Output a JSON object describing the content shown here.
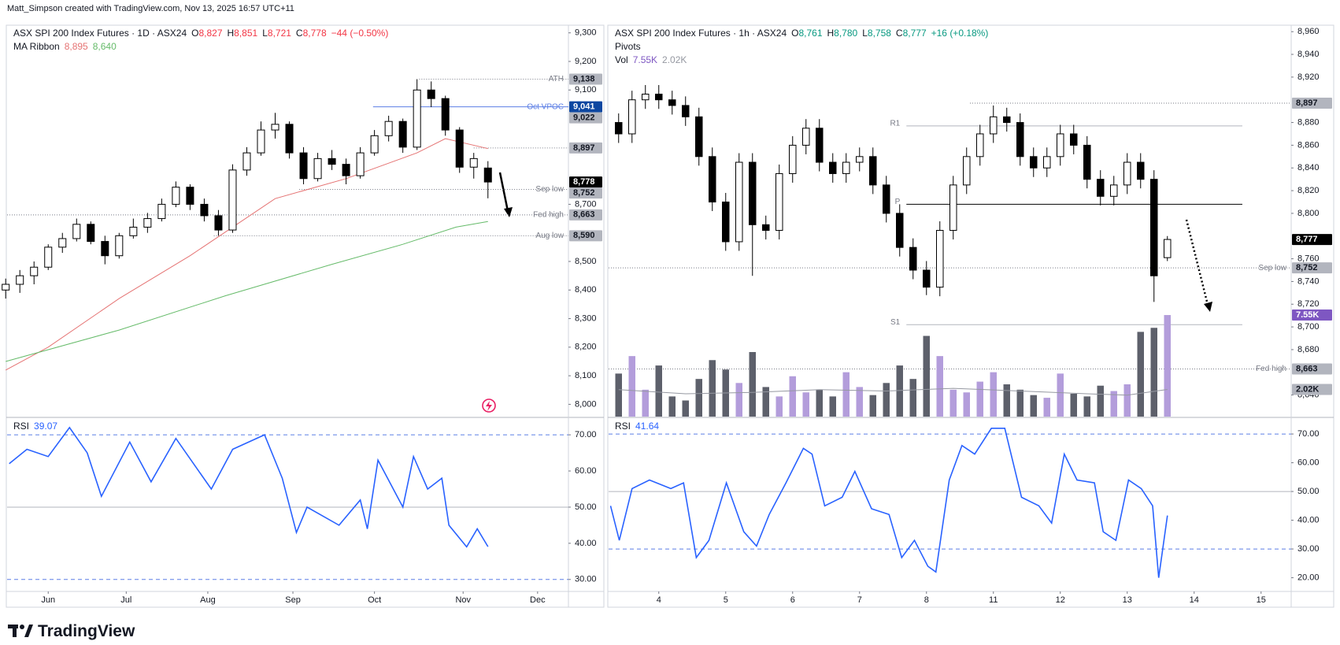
{
  "credit": "Matt_Simpson created with TradingView.com, Nov 13, 2025 16:57 UTC+11",
  "brand": "TradingView",
  "chart_data": [
    {
      "type": "candlestick",
      "title": "ASX SPI 200 Index Futures · 1D · ASX24",
      "ohlc": [
        {
          "key": "O",
          "label": "8,827"
        },
        {
          "key": "H",
          "label": "8,851"
        },
        {
          "key": "L",
          "label": "8,721"
        },
        {
          "key": "C",
          "label": "8,778"
        }
      ],
      "change": "−44 (−0.50%)",
      "change_color": "#f23645",
      "x": [
        -12,
        -8,
        -4,
        0,
        4,
        8,
        12,
        16,
        20,
        24,
        28,
        32,
        36,
        40,
        44,
        48,
        52,
        56,
        60,
        64,
        68,
        72,
        76,
        80,
        84,
        88,
        92,
        96,
        100,
        104,
        108,
        112,
        116,
        120,
        124
      ],
      "open": [
        8400,
        8420,
        8450,
        8480,
        8550,
        8580,
        8630,
        8570,
        8520,
        8590,
        8620,
        8650,
        8700,
        8760,
        8700,
        8660,
        8610,
        8820,
        8880,
        8960,
        8980,
        8880,
        8790,
        8860,
        8840,
        8800,
        8880,
        8940,
        8990,
        8900,
        9100,
        9070,
        8960,
        8830,
        8827
      ],
      "high": [
        8440,
        8470,
        8500,
        8560,
        8600,
        8650,
        8640,
        8590,
        8600,
        8650,
        8670,
        8720,
        8780,
        8770,
        8720,
        8680,
        8840,
        8900,
        8990,
        9020,
        8990,
        8900,
        8880,
        8890,
        8860,
        8900,
        8960,
        9010,
        9000,
        9138,
        9130,
        9080,
        8970,
        8880,
        8851
      ],
      "low": [
        8370,
        8390,
        8420,
        8470,
        8530,
        8570,
        8560,
        8490,
        8510,
        8580,
        8600,
        8640,
        8690,
        8680,
        8640,
        8590,
        8600,
        8800,
        8870,
        8930,
        8860,
        8770,
        8780,
        8820,
        8770,
        8790,
        8870,
        8920,
        8880,
        8890,
        9040,
        8940,
        8810,
        8790,
        8721
      ],
      "close": [
        8420,
        8450,
        8480,
        8550,
        8580,
        8630,
        8570,
        8520,
        8590,
        8620,
        8650,
        8700,
        8760,
        8700,
        8660,
        8610,
        8820,
        8880,
        8960,
        8980,
        8880,
        8790,
        8860,
        8840,
        8800,
        8880,
        8940,
        8990,
        8900,
        9100,
        9070,
        8960,
        8830,
        8860,
        8778
      ],
      "up_color": "#ffffff",
      "down_color": "#000000",
      "xlim": [
        -11.6,
        146.7
      ],
      "xticks": [
        {
          "value": 0,
          "label": "Jun"
        },
        {
          "value": 22,
          "label": "Jul"
        },
        {
          "value": 45,
          "label": "Aug"
        },
        {
          "value": 69,
          "label": "Sep"
        },
        {
          "value": 92,
          "label": "Oct"
        },
        {
          "value": 117,
          "label": "Nov"
        },
        {
          "value": 138,
          "label": "Dec"
        }
      ],
      "ylim": [
        7957,
        9324
      ],
      "yticks": [
        {
          "value": 8000,
          "label": "8,000"
        },
        {
          "value": 8100,
          "label": "8,100"
        },
        {
          "value": 8200,
          "label": "8,200"
        },
        {
          "value": 8300,
          "label": "8,300"
        },
        {
          "value": 8400,
          "label": "8,400"
        },
        {
          "value": 8500,
          "label": "8,500"
        },
        {
          "value": 8700,
          "label": "8,700"
        },
        {
          "value": 9100,
          "label": "9,100"
        },
        {
          "value": 9200,
          "label": "9,200"
        },
        {
          "value": 9300,
          "label": "9,300"
        }
      ],
      "overlays": {
        "name": "MA Ribbon",
        "series": [
          {
            "label": "8,895",
            "color": "#e57373",
            "x": [
              -12,
              0,
              20,
              40,
              52,
              64,
              84,
              104,
              112,
              124
            ],
            "values": [
              8120,
              8200,
              8370,
              8520,
              8620,
              8720,
              8790,
              8880,
              8930,
              8895
            ]
          },
          {
            "label": "8,640",
            "color": "#66bb6a",
            "x": [
              -12,
              20,
              50,
              80,
              100,
              115,
              124
            ],
            "values": [
              8150,
              8260,
              8380,
              8490,
              8560,
              8620,
              8640
            ]
          }
        ]
      },
      "levels": [
        {
          "name": "ATH",
          "value": 9138,
          "label": "9,138",
          "x_from": 104.6,
          "color": "#787b86",
          "dash": true,
          "badge_color": "#b2b5be"
        },
        {
          "name": "Oct VPOC",
          "value": 9041,
          "label": "9,041",
          "x_from": 91.6,
          "color": "#5b7ee5",
          "dash": false,
          "badge_color": "#0d47a1"
        },
        {
          "name": "Sep low",
          "value": 8752,
          "label": "8,752",
          "x_from": 70.8,
          "color": "#787b86",
          "dash": true,
          "badge_color": "#b2b5be"
        },
        {
          "name": "Fed high",
          "value": 8663,
          "label": "8,663",
          "x_from": -11.6,
          "color": "#787b86",
          "dash": true,
          "badge_color": "#b2b5be"
        },
        {
          "name": "Aug low",
          "value": 8590,
          "label": "8,590",
          "x_from": 46.7,
          "color": "#787b86",
          "dash": true,
          "badge_color": "#b2b5be"
        }
      ],
      "badges": [
        {
          "value": 9022,
          "label": "9,022",
          "color": "#b2b5be"
        },
        {
          "value": 8897,
          "label": "8,897",
          "color": "#b2b5be",
          "x_from": 120
        },
        {
          "value": 8778,
          "label": "8,778",
          "color": "#000000"
        }
      ],
      "rsi": {
        "name": "RSI",
        "color": "#2962ff",
        "x": [
          -11,
          -6,
          0,
          6,
          11,
          15,
          23,
          29,
          36,
          46,
          52,
          61,
          66,
          70,
          73,
          82,
          88,
          90,
          93,
          100,
          103,
          107,
          111,
          113,
          118,
          121,
          124
        ],
        "values": [
          62,
          66,
          64,
          72,
          65,
          53,
          68,
          57,
          69,
          55,
          66,
          70,
          58,
          43,
          50,
          45,
          52,
          44,
          63,
          50,
          64,
          55,
          58,
          45,
          39,
          44,
          39.07
        ],
        "ylim": [
          26.9,
          74.6
        ],
        "yticks": [
          {
            "value": 30,
            "label": "30.00"
          },
          {
            "value": 40,
            "label": "40.00"
          },
          {
            "value": 50,
            "label": "50.00"
          },
          {
            "value": 60,
            "label": "60.00"
          },
          {
            "value": 70,
            "label": "70.00"
          }
        ],
        "bands": [
          {
            "value": 70,
            "dash": true
          },
          {
            "value": 50,
            "dash": false
          },
          {
            "value": 30,
            "dash": true
          }
        ]
      }
    },
    {
      "type": "candlestick",
      "title": "ASX SPI 200 Index Futures · 1h · ASX24",
      "ohlc": [
        {
          "key": "O",
          "label": "8,761"
        },
        {
          "key": "H",
          "label": "8,780"
        },
        {
          "key": "L",
          "label": "8,758"
        },
        {
          "key": "C",
          "label": "8,777"
        }
      ],
      "change": "+16 (+0.18%)",
      "change_color": "#089981",
      "x": [
        -0.6,
        -0.4,
        -0.2,
        0,
        0.2,
        0.4,
        0.6,
        0.8,
        1,
        1.2,
        1.4,
        1.6,
        1.8,
        2,
        2.2,
        2.4,
        2.6,
        2.8,
        3,
        3.2,
        3.4,
        3.6,
        3.8,
        4,
        4.2,
        4.4,
        4.6,
        4.8,
        5,
        5.2,
        5.4,
        5.6,
        5.8,
        6,
        6.2,
        6.4,
        6.6,
        6.8,
        7,
        7.2,
        7.4,
        7.6
      ],
      "open": [
        8880,
        8870,
        8900,
        8905,
        8900,
        8895,
        8885,
        8850,
        8810,
        8775,
        8845,
        8790,
        8785,
        8835,
        8860,
        8875,
        8845,
        8835,
        8845,
        8850,
        8825,
        8800,
        8770,
        8750,
        8735,
        8785,
        8825,
        8850,
        8870,
        8885,
        8880,
        8850,
        8840,
        8850,
        8870,
        8860,
        8830,
        8815,
        8825,
        8845,
        8830,
        8761
      ],
      "high": [
        8888,
        8908,
        8913,
        8913,
        8908,
        8903,
        8893,
        8858,
        8818,
        8853,
        8853,
        8798,
        8843,
        8868,
        8883,
        8883,
        8853,
        8853,
        8858,
        8858,
        8833,
        8808,
        8778,
        8758,
        8793,
        8833,
        8858,
        8878,
        8895,
        8893,
        8888,
        8858,
        8858,
        8878,
        8878,
        8868,
        8838,
        8833,
        8853,
        8853,
        8838,
        8780
      ],
      "low": [
        8862,
        8862,
        8892,
        8892,
        8887,
        8877,
        8842,
        8802,
        8767,
        8767,
        8745,
        8777,
        8777,
        8827,
        8852,
        8837,
        8827,
        8827,
        8837,
        8817,
        8792,
        8762,
        8742,
        8728,
        8727,
        8777,
        8817,
        8842,
        8862,
        8872,
        8842,
        8832,
        8832,
        8842,
        8852,
        8822,
        8807,
        8807,
        8817,
        8822,
        8722,
        8758
      ],
      "close": [
        8870,
        8900,
        8905,
        8900,
        8895,
        8885,
        8850,
        8810,
        8775,
        8845,
        8790,
        8785,
        8835,
        8860,
        8875,
        8845,
        8835,
        8845,
        8850,
        8825,
        8800,
        8770,
        8750,
        8735,
        8785,
        8825,
        8850,
        8870,
        8885,
        8880,
        8850,
        8840,
        8850,
        8870,
        8860,
        8830,
        8815,
        8825,
        8845,
        8830,
        8745,
        8777
      ],
      "up_color": "#ffffff",
      "down_color": "#000000",
      "xlim": [
        -0.75,
        9.45
      ],
      "xticks": [
        {
          "value": 0,
          "label": "4"
        },
        {
          "value": 1,
          "label": "5"
        },
        {
          "value": 2,
          "label": "6"
        },
        {
          "value": 3,
          "label": "7"
        },
        {
          "value": 4,
          "label": "8"
        },
        {
          "value": 5,
          "label": "11"
        },
        {
          "value": 6,
          "label": "12"
        },
        {
          "value": 7,
          "label": "13"
        },
        {
          "value": 8,
          "label": "14"
        },
        {
          "value": 9,
          "label": "15"
        }
      ],
      "ylim": [
        8621,
        8965
      ],
      "yticks": [
        {
          "value": 8640,
          "label": "8,640"
        },
        {
          "value": 8680,
          "label": "8,680"
        },
        {
          "value": 8700,
          "label": "8,700"
        },
        {
          "value": 8720,
          "label": "8,720"
        },
        {
          "value": 8740,
          "label": "8,740"
        },
        {
          "value": 8760,
          "label": "8,760"
        },
        {
          "value": 8800,
          "label": "8,800"
        },
        {
          "value": 8820,
          "label": "8,820"
        },
        {
          "value": 8840,
          "label": "8,840"
        },
        {
          "value": 8860,
          "label": "8,860"
        },
        {
          "value": 8880,
          "label": "8,880"
        },
        {
          "value": 8920,
          "label": "8,920"
        },
        {
          "value": 8940,
          "label": "8,940"
        },
        {
          "value": 8960,
          "label": "8,960"
        }
      ],
      "pivots": {
        "name": "Pivots",
        "levels": [
          {
            "name": "R1",
            "value": 8877,
            "x_from": 3.7,
            "x_to": 8.72,
            "color": "#b2b5be"
          },
          {
            "name": "P",
            "value": 8808,
            "x_from": 3.7,
            "x_to": 8.72,
            "color": "#000000"
          },
          {
            "name": "S1",
            "value": 8702,
            "x_from": 3.7,
            "x_to": 8.72,
            "color": "#b2b5be"
          }
        ]
      },
      "volume": {
        "name": "Vol",
        "label": "7.55K",
        "color_up": "#b39ddb",
        "color_down": "#5d606b",
        "values": [
          3.2,
          4.5,
          2.0,
          3.8,
          1.5,
          1.2,
          2.8,
          4.2,
          3.5,
          2.5,
          4.8,
          2.2,
          1.5,
          3.0,
          1.8,
          2.0,
          1.5,
          3.3,
          2.2,
          1.6,
          2.5,
          3.8,
          2.8,
          6.0,
          4.5,
          2.0,
          1.8,
          2.6,
          3.3,
          2.4,
          2.0,
          1.6,
          1.4,
          3.2,
          1.7,
          1.5,
          2.3,
          1.9,
          2.4,
          6.3,
          6.6,
          7.55
        ],
        "badge_color": "#7e57c2",
        "ma": {
          "label": "2.02K",
          "color": "#9598a1",
          "badge_color": "#b2b5be",
          "x": [
            -0.6,
            0.4,
            1.4,
            2.4,
            3.4,
            4.4,
            5.4,
            6.4,
            7,
            7.6
          ],
          "values": [
            2.0,
            1.7,
            1.8,
            2.0,
            1.9,
            2.1,
            1.9,
            1.7,
            1.6,
            2.02
          ]
        }
      },
      "levels": [
        {
          "name": "Sep low",
          "value": 8752,
          "label": "8,752",
          "x_from": -0.75,
          "color": "#787b86",
          "dash": true,
          "badge_color": "#b2b5be"
        },
        {
          "name": "Fed high",
          "value": 8663,
          "label": "8,663",
          "x_from": -0.75,
          "color": "#787b86",
          "dash": true,
          "badge_color": "#b2b5be"
        }
      ],
      "badges": [
        {
          "value": 8897,
          "label": "8,897",
          "color": "#b2b5be",
          "x_from": 4.65
        },
        {
          "value": 8777,
          "label": "8,777",
          "color": "#000000"
        }
      ],
      "rsi": {
        "name": "RSI",
        "color": "#2962ff",
        "x": [
          -0.72,
          -0.59,
          -0.4,
          -0.14,
          0.18,
          0.37,
          0.56,
          0.75,
          1.01,
          1.27,
          1.46,
          1.65,
          1.9,
          2.16,
          2.29,
          2.48,
          2.74,
          2.93,
          3.18,
          3.44,
          3.63,
          3.82,
          4.02,
          4.14,
          4.34,
          4.53,
          4.72,
          4.97,
          5.17,
          5.42,
          5.68,
          5.87,
          6.06,
          6.25,
          6.51,
          6.64,
          6.83,
          7.02,
          7.21,
          7.38,
          7.47,
          7.6
        ],
        "values": [
          45,
          33,
          51,
          54,
          51,
          53,
          27,
          33,
          53,
          36,
          31,
          42,
          53,
          65,
          63,
          45,
          48,
          57,
          44,
          42,
          27,
          33,
          24,
          22,
          54,
          66,
          63,
          72,
          72,
          48,
          45,
          39,
          63,
          54,
          53,
          36,
          33,
          54,
          51,
          45,
          20,
          41.64
        ],
        "ylim": [
          15.5,
          75.5
        ],
        "yticks": [
          {
            "value": 20,
            "label": "20.00"
          },
          {
            "value": 30,
            "label": "30.00"
          },
          {
            "value": 40,
            "label": "40.00"
          },
          {
            "value": 50,
            "label": "50.00"
          },
          {
            "value": 60,
            "label": "60.00"
          },
          {
            "value": 70,
            "label": "70.00"
          }
        ],
        "bands": [
          {
            "value": 70,
            "dash": true
          },
          {
            "value": 50,
            "dash": false
          },
          {
            "value": 30,
            "dash": true
          }
        ]
      }
    }
  ]
}
